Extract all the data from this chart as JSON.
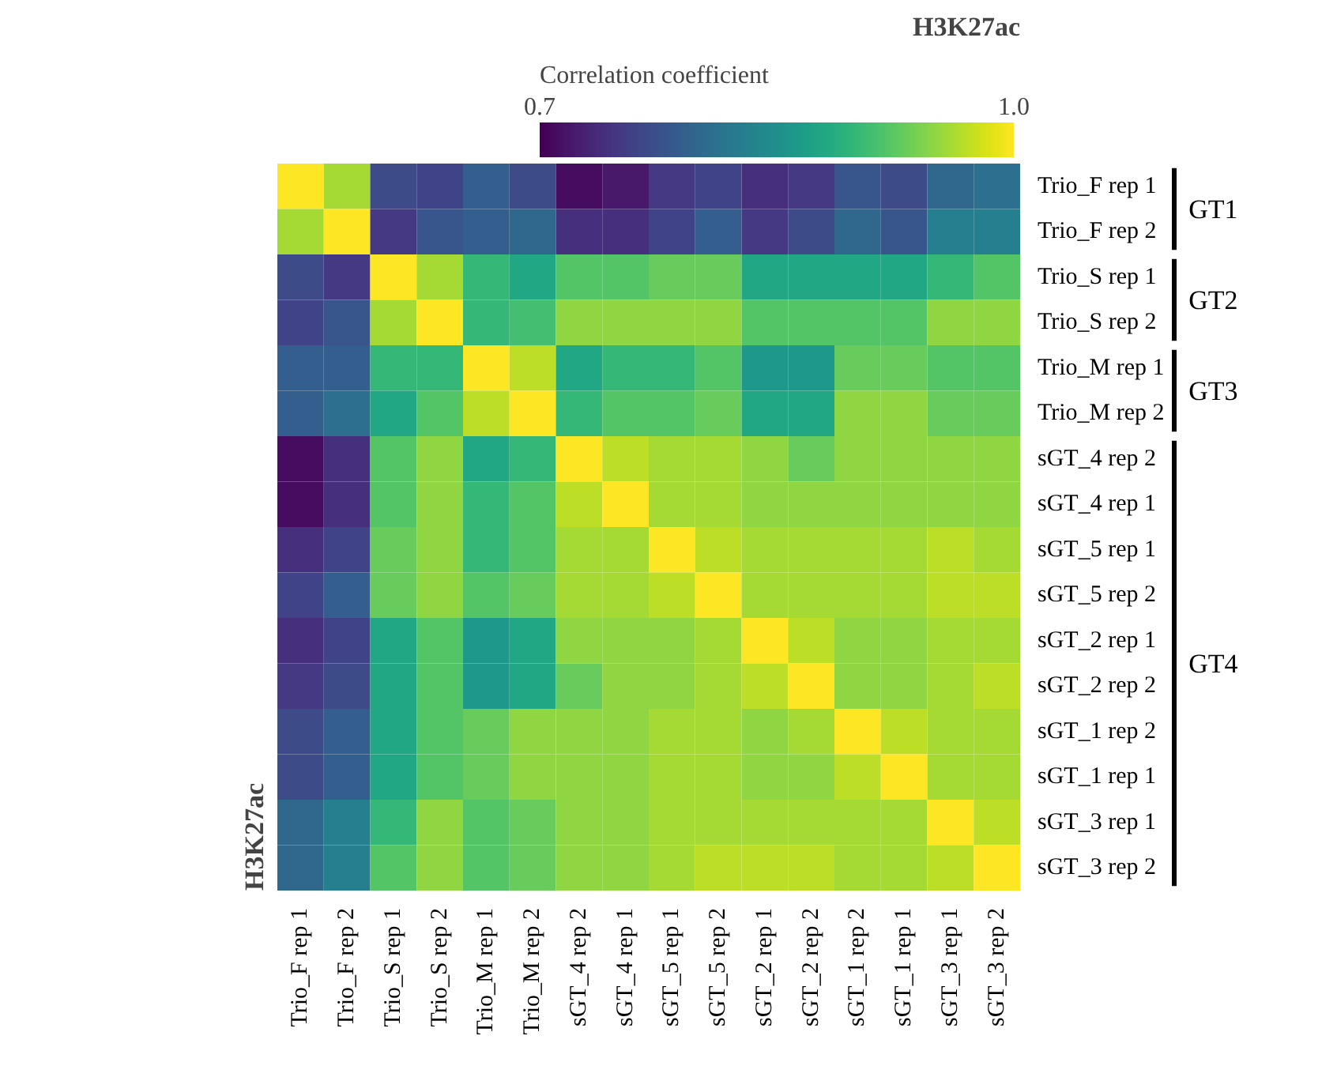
{
  "chart_data": {
    "type": "heatmap",
    "clabel": "Correlation coefficient",
    "annotations": [
      "H3K27ac",
      "H3K27ac",
      "GT1",
      "GT2",
      "GT3",
      "GT4"
    ],
    "categories": [
      "Trio_F rep 1",
      "Trio_F rep 2",
      "Trio_S rep 1",
      "Trio_S rep 2",
      "Trio_M rep 1",
      "Trio_M rep 2",
      "sGT_4 rep 2",
      "sGT_4 rep 1",
      "sGT_5 rep 1",
      "sGT_5 rep 2",
      "sGT_2 rep 1",
      "sGT_2 rep 2",
      "sGT_1 rep 2",
      "sGT_1 rep 1",
      "sGT_3 rep 1",
      "sGT_3 rep 2"
    ],
    "y_categories": [
      "Trio_F rep 1",
      "Trio_F rep 2",
      "Trio_S rep 1",
      "Trio_S rep 2",
      "Trio_M rep 1",
      "Trio_M rep 2",
      "sGT_4 rep 2",
      "sGT_4 rep 1",
      "sGT_5 rep 1",
      "sGT_5 rep 2",
      "sGT_2 rep 1",
      "sGT_2 rep 2",
      "sGT_1 rep 2",
      "sGT_1 rep 1",
      "sGT_3 rep 1",
      "sGT_3 rep 2"
    ],
    "cells": [
      [
        1.0,
        0.96,
        0.77,
        0.76,
        0.79,
        0.77,
        0.71,
        0.72,
        0.75,
        0.76,
        0.74,
        0.75,
        0.78,
        0.77,
        0.8,
        0.81
      ],
      [
        0.96,
        1.0,
        0.75,
        0.78,
        0.79,
        0.8,
        0.74,
        0.74,
        0.76,
        0.79,
        0.75,
        0.77,
        0.8,
        0.78,
        0.83,
        0.83
      ],
      [
        0.77,
        0.75,
        1.0,
        0.96,
        0.9,
        0.88,
        0.92,
        0.92,
        0.93,
        0.93,
        0.88,
        0.88,
        0.88,
        0.88,
        0.9,
        0.92
      ],
      [
        0.76,
        0.78,
        0.96,
        1.0,
        0.9,
        0.91,
        0.95,
        0.95,
        0.95,
        0.95,
        0.92,
        0.92,
        0.92,
        0.92,
        0.95,
        0.95
      ],
      [
        0.79,
        0.79,
        0.9,
        0.9,
        1.0,
        0.97,
        0.88,
        0.9,
        0.9,
        0.92,
        0.86,
        0.86,
        0.93,
        0.93,
        0.92,
        0.92
      ],
      [
        0.79,
        0.81,
        0.88,
        0.92,
        0.97,
        1.0,
        0.9,
        0.92,
        0.92,
        0.93,
        0.88,
        0.88,
        0.95,
        0.95,
        0.93,
        0.93
      ],
      [
        0.71,
        0.74,
        0.92,
        0.95,
        0.88,
        0.9,
        1.0,
        0.97,
        0.96,
        0.96,
        0.95,
        0.93,
        0.95,
        0.95,
        0.95,
        0.95
      ],
      [
        0.71,
        0.74,
        0.92,
        0.95,
        0.9,
        0.92,
        0.97,
        1.0,
        0.96,
        0.96,
        0.95,
        0.95,
        0.95,
        0.95,
        0.95,
        0.95
      ],
      [
        0.74,
        0.76,
        0.93,
        0.95,
        0.9,
        0.92,
        0.96,
        0.96,
        1.0,
        0.97,
        0.96,
        0.96,
        0.96,
        0.96,
        0.97,
        0.96
      ],
      [
        0.76,
        0.79,
        0.93,
        0.95,
        0.92,
        0.93,
        0.96,
        0.96,
        0.97,
        1.0,
        0.96,
        0.96,
        0.96,
        0.96,
        0.97,
        0.97
      ],
      [
        0.74,
        0.76,
        0.88,
        0.92,
        0.86,
        0.88,
        0.95,
        0.95,
        0.95,
        0.96,
        1.0,
        0.97,
        0.95,
        0.95,
        0.96,
        0.96
      ],
      [
        0.75,
        0.77,
        0.88,
        0.92,
        0.86,
        0.88,
        0.93,
        0.95,
        0.95,
        0.96,
        0.97,
        1.0,
        0.95,
        0.95,
        0.96,
        0.97
      ],
      [
        0.77,
        0.79,
        0.88,
        0.92,
        0.93,
        0.95,
        0.95,
        0.95,
        0.96,
        0.96,
        0.95,
        0.96,
        1.0,
        0.97,
        0.96,
        0.96
      ],
      [
        0.77,
        0.79,
        0.88,
        0.92,
        0.93,
        0.95,
        0.95,
        0.95,
        0.96,
        0.96,
        0.95,
        0.95,
        0.97,
        1.0,
        0.96,
        0.96
      ],
      [
        0.8,
        0.83,
        0.9,
        0.95,
        0.92,
        0.93,
        0.95,
        0.95,
        0.96,
        0.96,
        0.96,
        0.96,
        0.96,
        0.96,
        1.0,
        0.97
      ],
      [
        0.8,
        0.83,
        0.92,
        0.95,
        0.92,
        0.93,
        0.95,
        0.95,
        0.96,
        0.97,
        0.97,
        0.97,
        0.96,
        0.96,
        0.97,
        1.0
      ]
    ],
    "clim": [
      0.7,
      1.0
    ],
    "cticks": [
      0.7,
      {
        "value": 1.0,
        "label": "1.0"
      }
    ]
  }
}
